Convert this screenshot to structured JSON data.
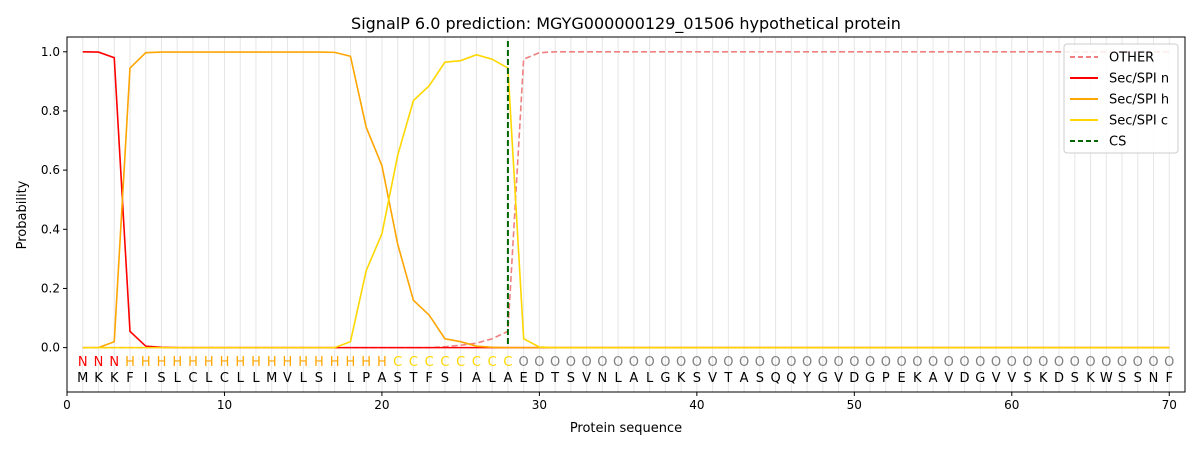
{
  "chart_data": {
    "type": "line",
    "title": "SignalP 6.0 prediction: MGYG000000129_01506 hypothetical protein",
    "xlabel": "Protein sequence",
    "ylabel": "Probability",
    "xlim": [
      0,
      71
    ],
    "ylim": [
      -0.15,
      1.05
    ],
    "xticks": [
      0,
      10,
      20,
      30,
      40,
      50,
      60,
      70
    ],
    "yticks": [
      "0.0",
      "0.2",
      "0.4",
      "0.6",
      "0.8",
      "1.0"
    ],
    "sequence": "MKKFISLCLCLLMVLSILPASTFSIALAEDTSVNLALGKSVTASQQYGVDGPEKAVDGVVSKDSKWSSNF",
    "labels": "NNNHHHHHHHHHHHHHHHHHCCCCCCCCOOOOOOOOOOOOOOOOOOOOOOOOOOOOOOOOOOOOOOOOOO",
    "label_colors": {
      "N": "#ff0000",
      "H": "#ffa500",
      "C": "#ffd700",
      "O": "#808080"
    },
    "cs_position": 28,
    "legend_position": "top-right",
    "series": [
      {
        "name": "OTHER",
        "color": "#f08080",
        "dash": true,
        "values": {
          "24": 0.003,
          "25": 0.008,
          "26": 0.015,
          "27": 0.03,
          "28": 0.055,
          "29": 0.975,
          "30": 0.997
        }
      },
      {
        "name": "Sec/SPI n",
        "color": "#ff0000",
        "values": {
          "1": 1.0,
          "2": 0.999,
          "3": 0.98,
          "4": 0.055,
          "5": 0.005,
          "6": 0.001
        }
      },
      {
        "name": "Sec/SPI h",
        "color": "#ffa500",
        "values": {
          "1": 0,
          "2": 0,
          "3": 0.02,
          "4": 0.945,
          "5": 0.997,
          "6": 0.999,
          "17": 0.998,
          "18": 0.985,
          "19": 0.745,
          "20": 0.615,
          "21": 0.35,
          "22": 0.16,
          "23": 0.11,
          "24": 0.03,
          "25": 0.02,
          "26": 0.005,
          "27": 0.001
        }
      },
      {
        "name": "Sec/SPI c",
        "color": "#ffd700",
        "values": {
          "17": 0.0,
          "18": 0.02,
          "19": 0.26,
          "20": 0.385,
          "21": 0.65,
          "22": 0.835,
          "23": 0.885,
          "24": 0.965,
          "25": 0.97,
          "26": 0.99,
          "27": 0.975,
          "28": 0.945,
          "29": 0.03,
          "30": 0.002
        }
      },
      {
        "name": "CS",
        "color": "#006400",
        "dash": true
      }
    ]
  }
}
